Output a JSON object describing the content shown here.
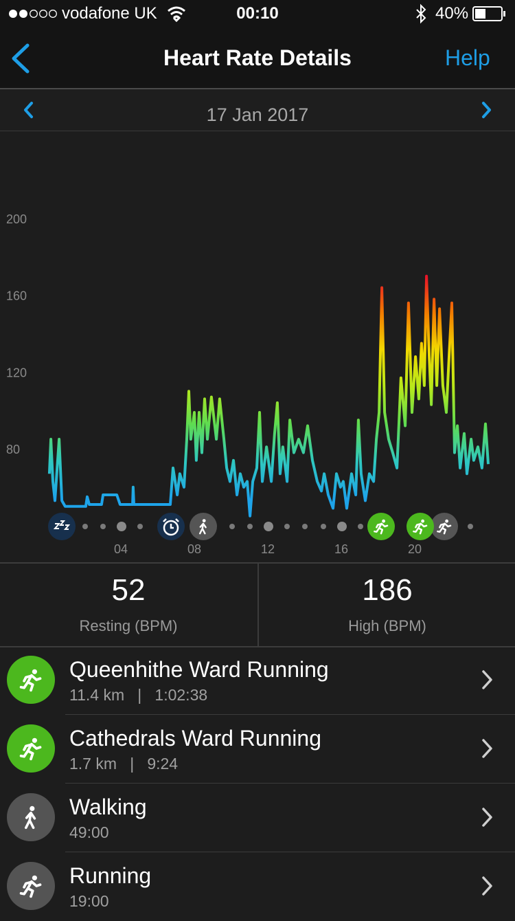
{
  "status_bar": {
    "carrier": "vodafone UK",
    "time": "00:10",
    "battery": "40%"
  },
  "nav": {
    "title": "Heart Rate Details",
    "action": "Help"
  },
  "date": "17 Jan 2017",
  "chart_data": {
    "type": "line",
    "x": [
      0.11,
      0.19,
      0.3,
      0.41,
      0.64,
      0.79,
      0.97,
      2.09,
      2.17,
      2.28,
      2.95,
      3.03,
      3.78,
      3.96,
      4.64,
      4.67,
      4.71,
      6.69,
      6.84,
      7.07,
      7.21,
      7.44,
      7.59,
      7.7,
      7.81,
      8.0,
      8.11,
      8.26,
      8.41,
      8.56,
      8.71,
      8.93,
      9.2,
      9.38,
      9.61,
      9.76,
      9.94,
      10.13,
      10.32,
      10.5,
      10.69,
      10.88,
      11.03,
      11.18,
      11.4,
      11.55,
      11.7,
      11.93,
      12.19,
      12.37,
      12.52,
      12.67,
      12.82,
      13.05,
      13.2,
      13.42,
      13.68,
      13.94,
      14.17,
      14.43,
      14.69,
      14.92,
      15.07,
      15.29,
      15.55,
      15.74,
      15.96,
      16.11,
      16.3,
      16.56,
      16.79,
      16.93,
      17.08,
      17.31,
      17.53,
      17.76,
      17.91,
      18.06,
      18.21,
      18.36,
      18.58,
      18.8,
      19.03,
      19.25,
      19.48,
      19.66,
      19.85,
      20.04,
      20.22,
      20.37,
      20.52,
      20.64,
      20.79,
      20.9,
      21.05,
      21.2,
      21.35,
      21.53,
      21.72,
      21.87,
      22.02,
      22.17,
      22.32,
      22.47,
      22.69,
      22.84,
      23.07,
      23.21,
      23.44,
      23.66,
      23.85,
      24.0
    ],
    "values": [
      67,
      85,
      63,
      53,
      85,
      53,
      50,
      50,
      55,
      51,
      51,
      56,
      56,
      51,
      51,
      60,
      51,
      51,
      70,
      56,
      67,
      60,
      85,
      110,
      85,
      99,
      74,
      99,
      78,
      106,
      85,
      107,
      85,
      106,
      85,
      70,
      63,
      74,
      56,
      67,
      60,
      63,
      45,
      63,
      70,
      99,
      63,
      81,
      63,
      88,
      104,
      67,
      81,
      63,
      95,
      78,
      85,
      78,
      92,
      74,
      63,
      58,
      67,
      56,
      49,
      67,
      60,
      63,
      49,
      67,
      56,
      95,
      67,
      53,
      67,
      63,
      85,
      99,
      164,
      99,
      85,
      78,
      70,
      117,
      92,
      156,
      99,
      128,
      106,
      135,
      113,
      170,
      128,
      103,
      158,
      113,
      153,
      113,
      99,
      128,
      156,
      78,
      92,
      70,
      88,
      67,
      85,
      74,
      81,
      70,
      93,
      72
    ],
    "colors": [
      "#1ea4ea",
      "#2fc8c0",
      "#5fdc50",
      "#b8e81a",
      "#f2d800",
      "#f27a00",
      "#e8102a"
    ],
    "xlim": [
      0,
      24
    ],
    "ylim": [
      40,
      240
    ],
    "xticks": [
      {
        "value": 4,
        "label": "04"
      },
      {
        "value": 8,
        "label": "08"
      },
      {
        "value": 12,
        "label": "12"
      },
      {
        "value": 16,
        "label": "16"
      },
      {
        "value": 20,
        "label": "20"
      }
    ],
    "yticks": [
      80,
      120,
      160,
      200
    ],
    "grid": false
  },
  "stats": [
    {
      "value": 52,
      "label": "Resting (BPM)"
    },
    {
      "value": 186,
      "label": "High (BPM)"
    }
  ],
  "activities": [
    {
      "title": "Queenhithe Ward Running",
      "detail": "11.4 km   |   1:02:38",
      "icon_color": "#4cb81e"
    },
    {
      "title": "Cathedrals Ward Running",
      "detail": "1.7 km   |   9:24",
      "icon_color": "#4cb81e"
    },
    {
      "title": "Walking",
      "detail": "49:00",
      "icon_color": "#545454"
    },
    {
      "title": "Running",
      "detail": "19:00",
      "icon_color": "#545454"
    }
  ]
}
